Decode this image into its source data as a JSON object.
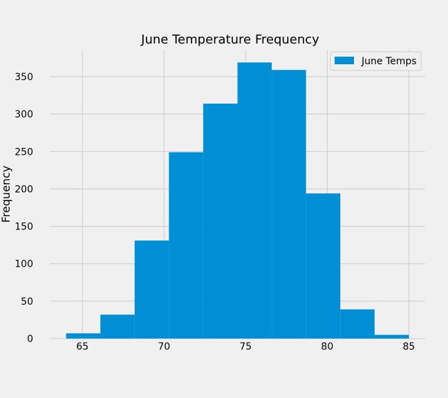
{
  "chart_data": {
    "type": "bar",
    "title": "June Temperature Frequency",
    "xlabel": "",
    "ylabel": "Frequency",
    "xlim": [
      63.0,
      86.0
    ],
    "ylim": [
      0,
      386
    ],
    "xticks": [
      65,
      70,
      75,
      80,
      85
    ],
    "yticks": [
      0,
      50,
      100,
      150,
      200,
      250,
      300,
      350
    ],
    "grid": true,
    "legend_position": "top-right",
    "series": [
      {
        "name": "June Temps",
        "color": "#008fd5",
        "bins": [
          {
            "x0": 64.0,
            "x1": 66.1,
            "count": 7
          },
          {
            "x0": 66.1,
            "x1": 68.2,
            "count": 32
          },
          {
            "x0": 68.2,
            "x1": 70.3,
            "count": 131
          },
          {
            "x0": 70.3,
            "x1": 72.4,
            "count": 249
          },
          {
            "x0": 72.4,
            "x1": 74.5,
            "count": 314
          },
          {
            "x0": 74.5,
            "x1": 76.6,
            "count": 369
          },
          {
            "x0": 76.6,
            "x1": 78.7,
            "count": 359
          },
          {
            "x0": 78.7,
            "x1": 80.8,
            "count": 194
          },
          {
            "x0": 80.8,
            "x1": 82.9,
            "count": 39
          },
          {
            "x0": 82.9,
            "x1": 85.0,
            "count": 5
          }
        ]
      }
    ]
  },
  "colors": {
    "background": "#f0f0f0",
    "grid": "#cbcbcb",
    "bar": "#008fd5"
  }
}
